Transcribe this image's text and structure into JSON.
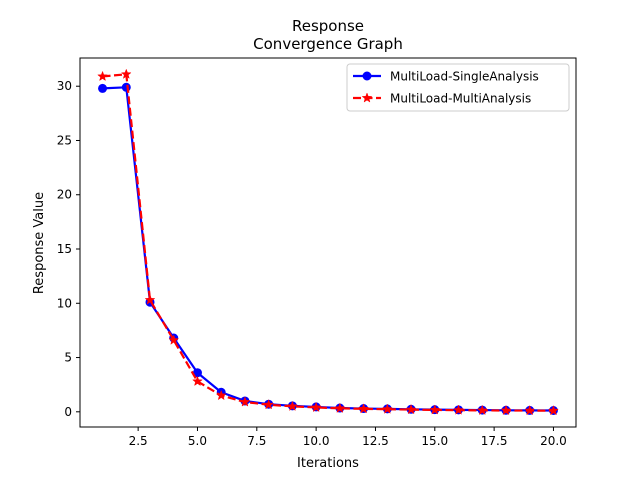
{
  "chart_data": {
    "type": "line",
    "title": [
      "Response",
      "Convergence Graph"
    ],
    "xlabel": "Iterations",
    "ylabel": "Response Value",
    "xlim": [
      0.05,
      20.95
    ],
    "ylim": [
      -1.4,
      32.6
    ],
    "xticks": [
      2.5,
      5.0,
      7.5,
      10.0,
      12.5,
      15.0,
      17.5,
      20.0
    ],
    "xtick_labels": [
      "2.5",
      "5.0",
      "7.5",
      "10.0",
      "12.5",
      "15.0",
      "17.5",
      "20.0"
    ],
    "yticks": [
      0,
      5,
      10,
      15,
      20,
      25,
      30
    ],
    "ytick_labels": [
      "0",
      "5",
      "10",
      "15",
      "20",
      "25",
      "30"
    ],
    "grid": false,
    "legend_position": "top-right",
    "x": [
      1,
      2,
      3,
      4,
      5,
      6,
      7,
      8,
      9,
      10,
      11,
      12,
      13,
      14,
      15,
      16,
      17,
      18,
      19,
      20
    ],
    "series": [
      {
        "name": "MultiLoad-SingleAnalysis",
        "color": "#0000ff",
        "linestyle": "solid",
        "marker": "circle",
        "values": [
          29.8,
          29.9,
          10.1,
          6.8,
          3.6,
          1.8,
          1.0,
          0.7,
          0.55,
          0.45,
          0.35,
          0.3,
          0.27,
          0.23,
          0.2,
          0.18,
          0.16,
          0.14,
          0.13,
          0.12
        ]
      },
      {
        "name": "MultiLoad-MultiAnalysis",
        "color": "#ff0000",
        "linestyle": "dashed",
        "marker": "star",
        "values": [
          30.9,
          31.1,
          10.3,
          6.6,
          2.8,
          1.5,
          0.9,
          0.65,
          0.5,
          0.4,
          0.32,
          0.27,
          0.24,
          0.2,
          0.17,
          0.15,
          0.13,
          0.12,
          0.11,
          0.1
        ]
      }
    ]
  }
}
